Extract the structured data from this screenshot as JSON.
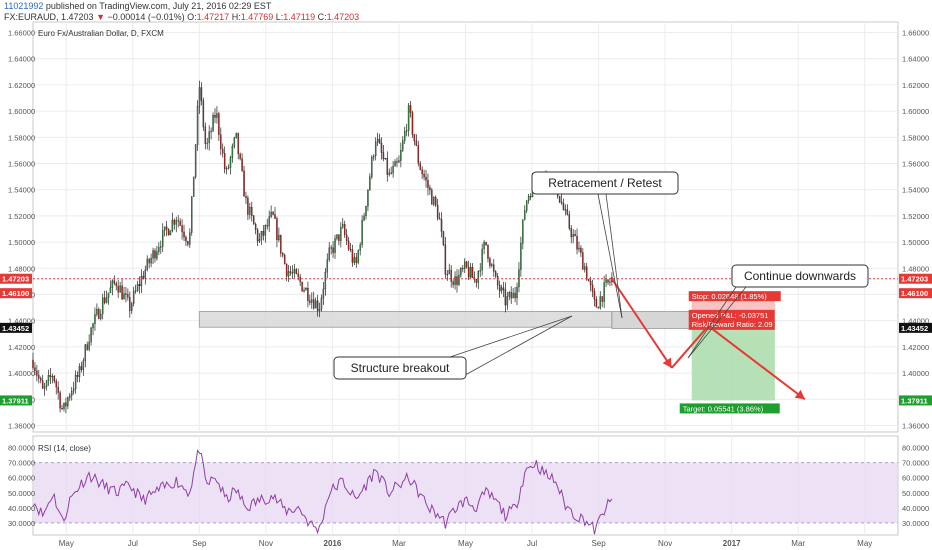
{
  "header": {
    "user_id": "11021992",
    "published_text": "published on TradingView.com, July 21, 2016 02:29 EST",
    "symbol": "FX:EURAUD,",
    "price": "1.47203",
    "arrow": "▼",
    "change": "−0.00014 (−0.01%)",
    "o_label": "O:",
    "o_val": "1.47217",
    "h_label": "H:",
    "h_val": "1.47769",
    "l_label": "L:",
    "l_val": "1.47119",
    "c_label": "C:",
    "c_val": "1.47203"
  },
  "chart_data": [
    {
      "type": "candlestick",
      "title": "Euro Fx/Australian Dollar, D, FXCM",
      "y_ticks": [
        "1.36000",
        "1.38000",
        "1.40000",
        "1.42000",
        "1.44000",
        "1.46000",
        "1.48000",
        "1.50000",
        "1.52000",
        "1.54000",
        "1.56000",
        "1.58000",
        "1.60000",
        "1.62000",
        "1.64000",
        "1.66000"
      ],
      "ylim": [
        1.355,
        1.665
      ],
      "x_ticks": [
        "May",
        "Jul",
        "Sep",
        "Nov",
        "2016",
        "Mar",
        "May",
        "Jul",
        "Sep",
        "Nov",
        "2017",
        "Mar",
        "May"
      ],
      "x_tick_months": [
        1,
        3,
        5,
        7,
        9,
        11,
        13,
        15,
        17,
        19,
        21,
        23,
        25
      ],
      "xlim": [
        0.0,
        26.0
      ],
      "grid": true,
      "price_badges": [
        {
          "value": 1.47203,
          "label": "1.47203",
          "color": "#e53935"
        },
        {
          "value": 1.461,
          "label": "1.46100",
          "color": "#e53935"
        },
        {
          "value": 1.43452,
          "label": "1.43452",
          "color": "#111111"
        },
        {
          "value": 1.37911,
          "label": "1.37911",
          "color": "#1e9e2e"
        }
      ],
      "current_price": 1.47203,
      "closes_keypoints": [
        [
          0.0,
          1.41
        ],
        [
          0.3,
          1.385
        ],
        [
          0.6,
          1.4
        ],
        [
          0.9,
          1.37
        ],
        [
          1.1,
          1.385
        ],
        [
          1.4,
          1.4
        ],
        [
          1.7,
          1.43
        ],
        [
          2.1,
          1.455
        ],
        [
          2.5,
          1.47
        ],
        [
          2.9,
          1.45
        ],
        [
          3.3,
          1.475
        ],
        [
          3.8,
          1.5
        ],
        [
          4.3,
          1.52
        ],
        [
          4.7,
          1.5
        ],
        [
          5.0,
          1.62
        ],
        [
          5.2,
          1.57
        ],
        [
          5.5,
          1.6
        ],
        [
          5.8,
          1.55
        ],
        [
          6.1,
          1.58
        ],
        [
          6.4,
          1.53
        ],
        [
          6.8,
          1.5
        ],
        [
          7.2,
          1.52
        ],
        [
          7.6,
          1.48
        ],
        [
          8.0,
          1.47
        ],
        [
          8.3,
          1.46
        ],
        [
          8.6,
          1.45
        ],
        [
          8.9,
          1.49
        ],
        [
          9.3,
          1.51
        ],
        [
          9.7,
          1.48
        ],
        [
          10.0,
          1.53
        ],
        [
          10.3,
          1.58
        ],
        [
          10.7,
          1.55
        ],
        [
          11.0,
          1.56
        ],
        [
          11.3,
          1.6
        ],
        [
          11.6,
          1.56
        ],
        [
          11.9,
          1.54
        ],
        [
          12.2,
          1.52
        ],
        [
          12.4,
          1.48
        ],
        [
          12.7,
          1.47
        ],
        [
          13.0,
          1.48
        ],
        [
          13.3,
          1.47
        ],
        [
          13.6,
          1.5
        ],
        [
          13.9,
          1.47
        ],
        [
          14.2,
          1.455
        ],
        [
          14.5,
          1.46
        ],
        [
          14.8,
          1.53
        ],
        [
          15.1,
          1.55
        ],
        [
          15.4,
          1.55
        ],
        [
          15.7,
          1.545
        ],
        [
          16.0,
          1.52
        ],
        [
          16.3,
          1.5
        ],
        [
          16.6,
          1.48
        ],
        [
          16.9,
          1.45
        ],
        [
          17.2,
          1.465
        ],
        [
          17.4,
          1.472
        ]
      ],
      "annotations": {
        "structure_zone": {
          "x0": 5.0,
          "x1": 17.4,
          "y0": 1.435,
          "y1": 1.447
        },
        "structure_zone_ext": {
          "x0": 17.4,
          "x1": 21.0,
          "y0": 1.434,
          "y1": 1.447
        },
        "position": {
          "x0": 19.8,
          "x1": 22.3,
          "entry": 1.43452,
          "stop": 1.461,
          "target": 1.37911
        },
        "stop_label": "Stop: 0.02648 (1.85%)",
        "pnl_label": "Opened P&L: -0.03751",
        "rr_label": "Risk/Reward Ratio: 2.09",
        "target_label": "Target: 0.05541 (3.86%)",
        "callout_retest": "Retracement / Retest",
        "callout_continue": "Continue downwards",
        "callout_breakout": "Structure breakout",
        "path": [
          [
            17.4,
            1.472
          ],
          [
            19.2,
            1.404
          ],
          [
            20.3,
            1.436
          ],
          [
            23.2,
            1.38
          ]
        ]
      }
    },
    {
      "type": "line",
      "title": "RSI (14, close)",
      "y_ticks": [
        "30.0000",
        "40.0000",
        "50.0000",
        "60.0000",
        "70.0000",
        "80.0000"
      ],
      "ylim": [
        22,
        85
      ],
      "band": [
        30,
        70
      ],
      "keypoints": [
        [
          0.0,
          45
        ],
        [
          0.3,
          35
        ],
        [
          0.6,
          50
        ],
        [
          0.9,
          30
        ],
        [
          1.1,
          45
        ],
        [
          1.4,
          55
        ],
        [
          1.7,
          62
        ],
        [
          2.1,
          55
        ],
        [
          2.5,
          50
        ],
        [
          2.9,
          55
        ],
        [
          3.3,
          45
        ],
        [
          3.8,
          52
        ],
        [
          4.3,
          58
        ],
        [
          4.7,
          50
        ],
        [
          5.0,
          80
        ],
        [
          5.2,
          55
        ],
        [
          5.5,
          60
        ],
        [
          5.8,
          45
        ],
        [
          6.1,
          52
        ],
        [
          6.4,
          40
        ],
        [
          6.8,
          45
        ],
        [
          7.2,
          48
        ],
        [
          7.6,
          38
        ],
        [
          8.0,
          40
        ],
        [
          8.3,
          30
        ],
        [
          8.6,
          25
        ],
        [
          8.9,
          50
        ],
        [
          9.3,
          58
        ],
        [
          9.7,
          45
        ],
        [
          10.0,
          55
        ],
        [
          10.3,
          65
        ],
        [
          10.7,
          50
        ],
        [
          11.0,
          55
        ],
        [
          11.3,
          60
        ],
        [
          11.6,
          50
        ],
        [
          11.9,
          40
        ],
        [
          12.2,
          35
        ],
        [
          12.4,
          30
        ],
        [
          12.7,
          40
        ],
        [
          13.0,
          45
        ],
        [
          13.3,
          40
        ],
        [
          13.6,
          50
        ],
        [
          13.9,
          45
        ],
        [
          14.2,
          35
        ],
        [
          14.5,
          40
        ],
        [
          14.8,
          65
        ],
        [
          15.1,
          70
        ],
        [
          15.4,
          62
        ],
        [
          15.7,
          58
        ],
        [
          16.0,
          42
        ],
        [
          16.3,
          35
        ],
        [
          16.6,
          32
        ],
        [
          16.9,
          25
        ],
        [
          17.2,
          40
        ],
        [
          17.4,
          44
        ]
      ]
    }
  ]
}
